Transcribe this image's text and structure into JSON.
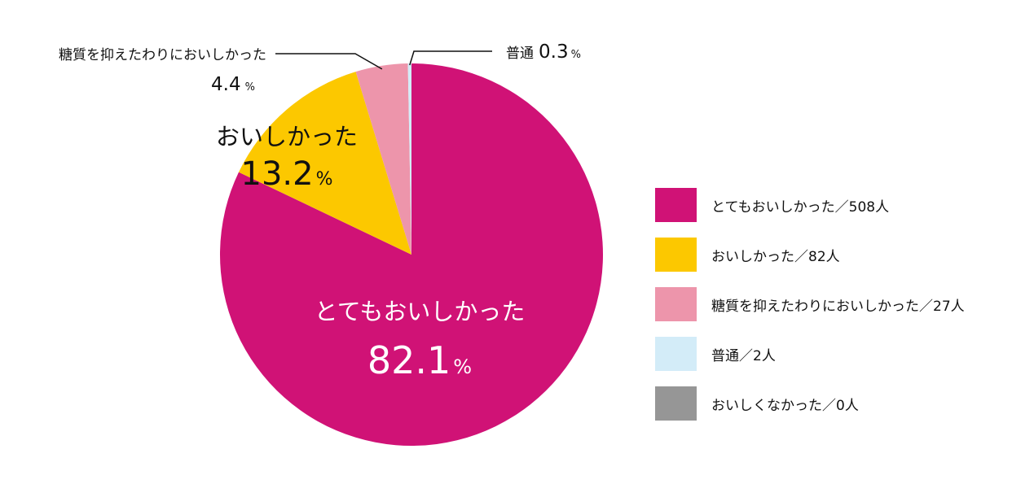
{
  "chart_data": {
    "type": "pie",
    "slices": [
      {
        "name": "とてもおいしかった",
        "legend_label": "とてもおいしかった／508人",
        "count": 508,
        "percent": 82.1,
        "pct_num": "82.1",
        "pct_unit": "%",
        "color": "#D01276"
      },
      {
        "name": "おいしかった",
        "legend_label": "おいしかった／82人",
        "count": 82,
        "percent": 13.2,
        "pct_num": "13.2",
        "pct_unit": "%",
        "color": "#FCC800"
      },
      {
        "name": "糖質を抑えたわりにおいしかった",
        "legend_label": "糖質を抑えたわりにおいしかった／27人",
        "count": 27,
        "percent": 4.4,
        "pct_num": "4.4",
        "pct_unit": "%",
        "color": "#ED95AB"
      },
      {
        "name": "普通",
        "legend_label": "普通／2人",
        "count": 2,
        "percent": 0.3,
        "pct_num": "0.3",
        "pct_unit": "%",
        "color": "#D3ECF8"
      },
      {
        "name": "おいしくなかった",
        "legend_label": "おいしくなかった／0人",
        "count": 0,
        "percent": 0,
        "color": "#969696"
      }
    ],
    "legend_position": "right"
  }
}
